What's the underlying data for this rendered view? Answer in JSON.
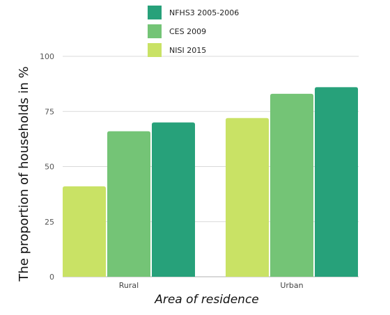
{
  "chart_data": {
    "type": "bar",
    "categories": [
      "Rural",
      "Urban"
    ],
    "series": [
      {
        "name": "NISI 2015",
        "values": [
          41,
          72
        ],
        "color": "#c9e265"
      },
      {
        "name": "CES 2009",
        "values": [
          66,
          83
        ],
        "color": "#74c476"
      },
      {
        "name": "NFHS3 2005-2006",
        "values": [
          70,
          86
        ],
        "color": "#27a17a"
      }
    ],
    "legend_order": [
      "NFHS3 2005-2006",
      "CES 2009",
      "NISI 2015"
    ],
    "legend_placement": "top-center",
    "xlabel": "Area of residence",
    "ylabel": "The proportion of households in %",
    "ylim": [
      0,
      100
    ],
    "yticks": [
      0,
      25,
      50,
      75,
      100
    ],
    "grid": true
  }
}
